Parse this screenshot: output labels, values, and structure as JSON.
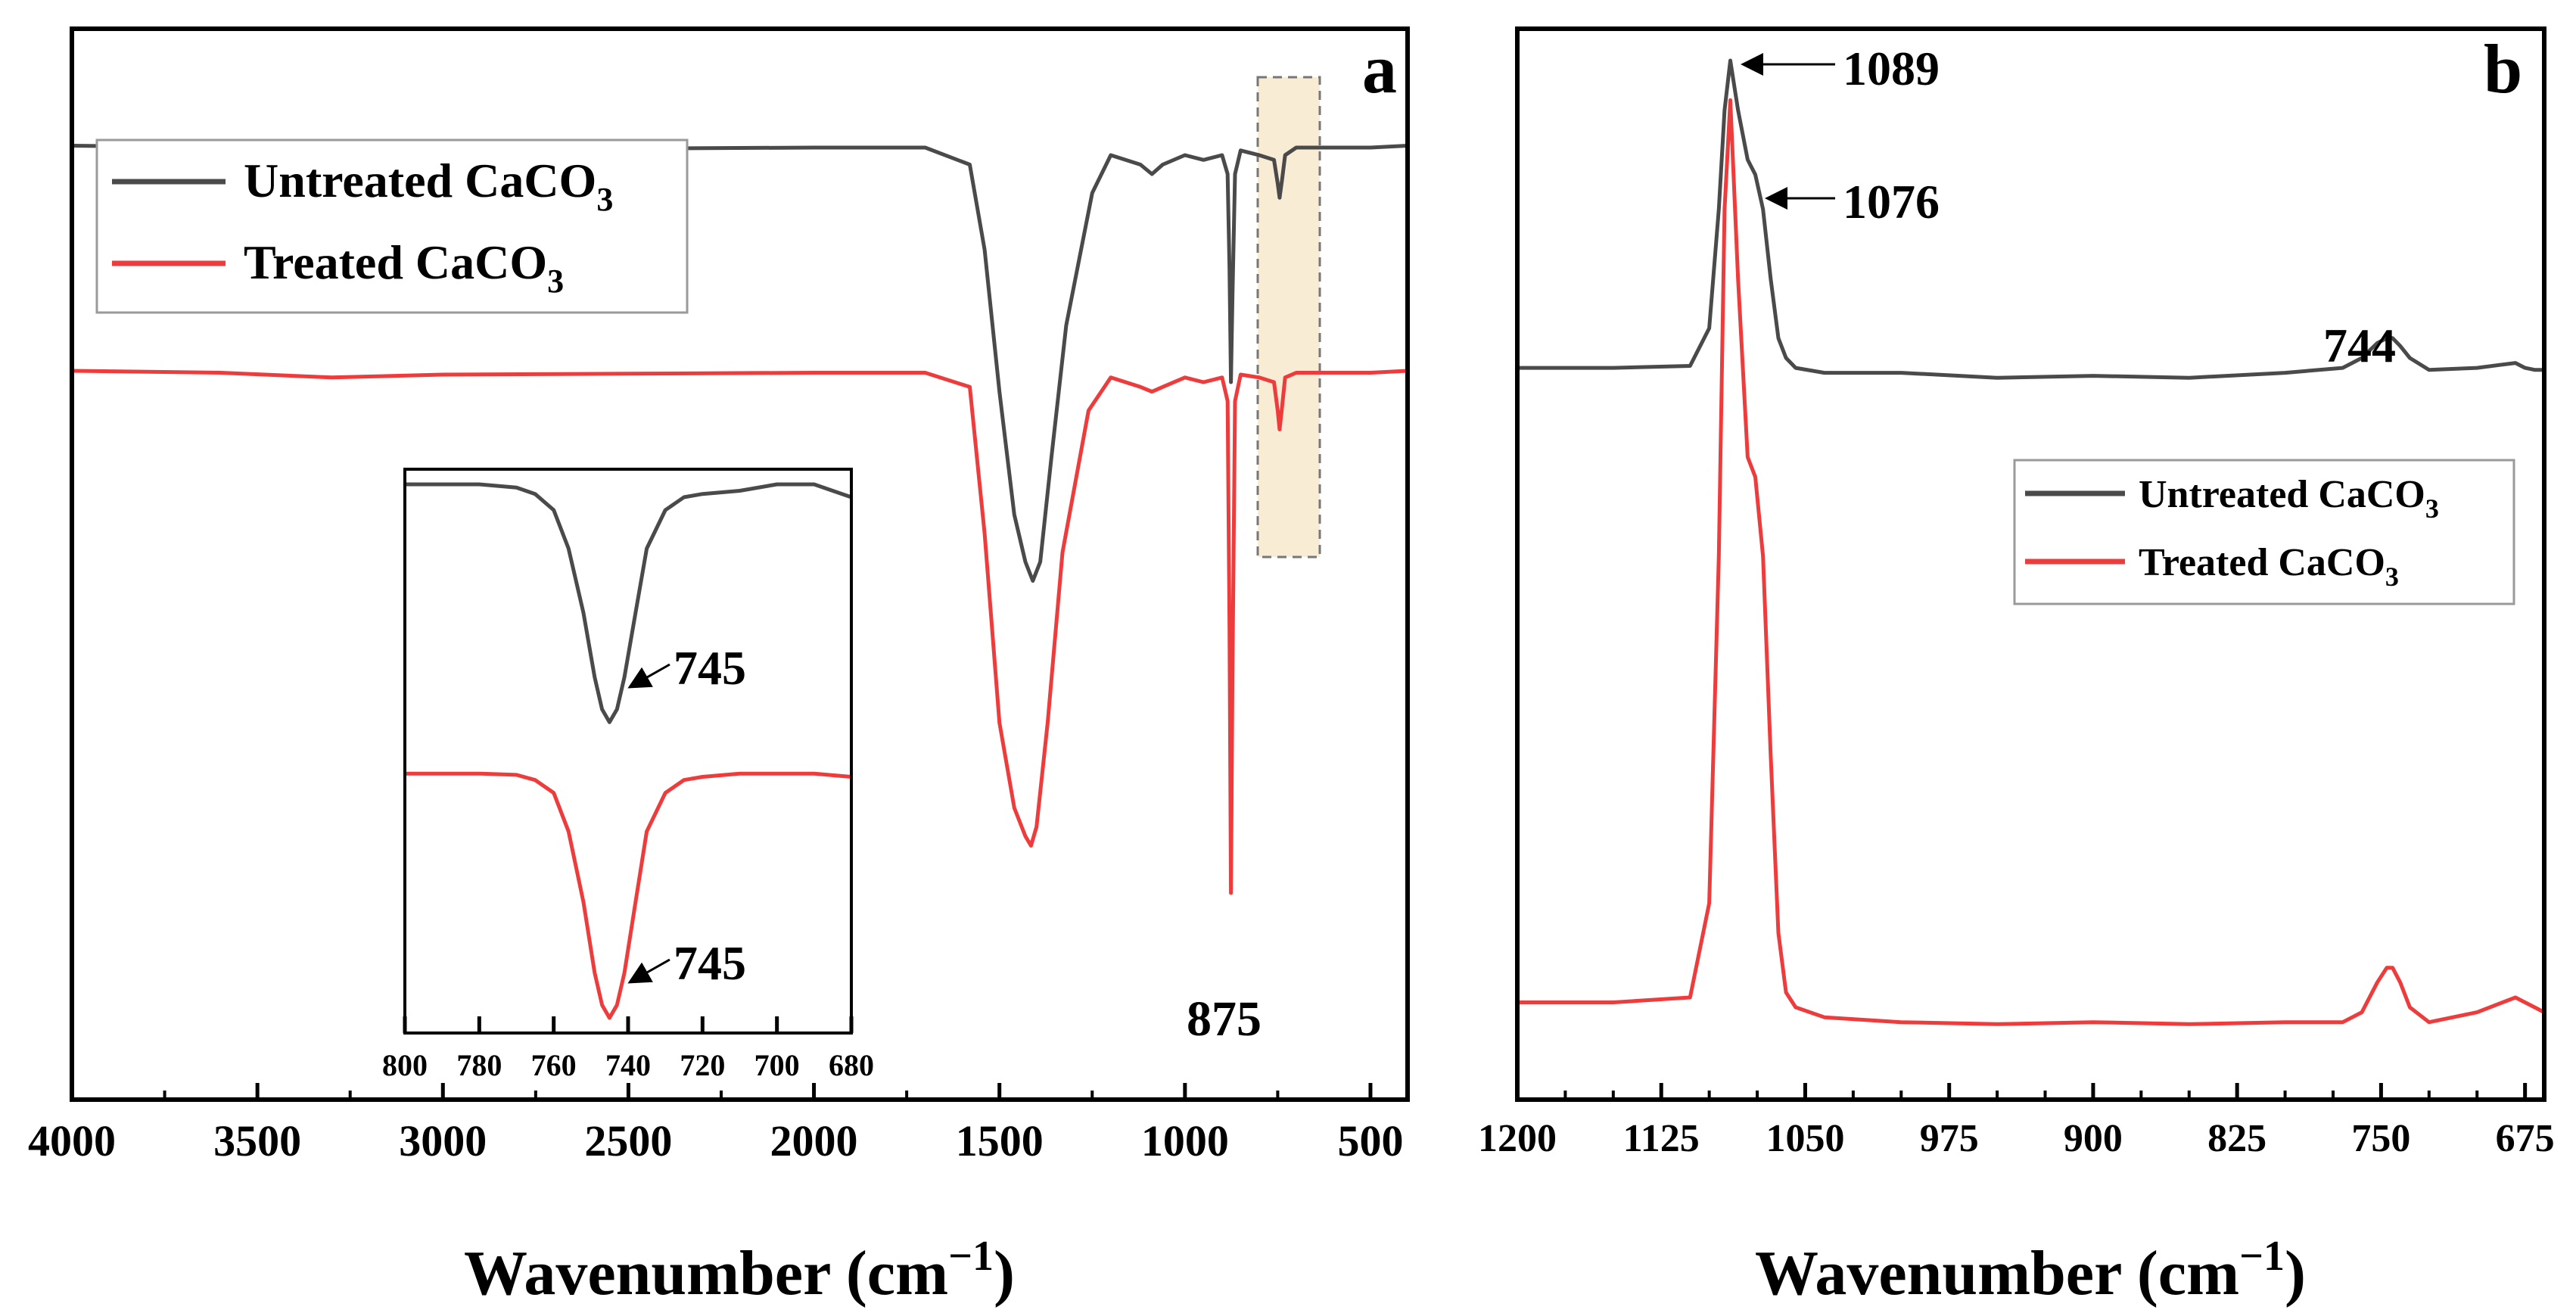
{
  "colors": {
    "untreated": "#4a4a4a",
    "treated": "#ee3b3b",
    "highlight_fill": "#f8ecd4",
    "axis": "#000000"
  },
  "panel_a": {
    "label": "a",
    "xlabel": "Wavenumber (cm",
    "xlabel_sup": "−1",
    "xlabel_close": ")",
    "legend": {
      "untreated": {
        "prefix": "Untreated CaCO",
        "sub": "3"
      },
      "treated": {
        "prefix": "Treated CaCO",
        "sub": "3"
      }
    },
    "peak_label_875": "875",
    "inset": {
      "peak_label_untreated": "745",
      "peak_label_treated": "745"
    }
  },
  "panel_b": {
    "label": "b",
    "xlabel": "Wavenumber (cm",
    "xlabel_sup": "−1",
    "xlabel_close": ")",
    "legend": {
      "untreated": {
        "prefix": "Untreated CaCO",
        "sub": "3"
      },
      "treated": {
        "prefix": "Treated CaCO",
        "sub": "3"
      }
    },
    "peak_1089": "1089",
    "peak_1076": "1076",
    "peak_744": "744"
  },
  "chart_data": [
    {
      "type": "line",
      "title": "a",
      "xlabel": "Wavenumber (cm−1)",
      "ylabel": "",
      "xlim": [
        4000,
        400
      ],
      "ylim": [
        0,
        1
      ],
      "xticks": [
        4000,
        3500,
        3000,
        2500,
        2000,
        1500,
        1000,
        500
      ],
      "legend": "top-left",
      "series": [
        {
          "name": "Untreated CaCO3",
          "color": "#4a4a4a",
          "x": [
            4000,
            3600,
            3300,
            3000,
            2500,
            2000,
            1700,
            1580,
            1540,
            1500,
            1460,
            1430,
            1410,
            1390,
            1360,
            1320,
            1250,
            1200,
            1120,
            1089,
            1060,
            1000,
            950,
            900,
            885,
            880,
            876,
            872,
            865,
            850,
            800,
            760,
            750,
            745,
            738,
            730,
            700,
            600,
            500,
            400
          ],
          "y": [
            0.91,
            0.908,
            0.905,
            0.906,
            0.907,
            0.908,
            0.908,
            0.89,
            0.8,
            0.65,
            0.52,
            0.47,
            0.45,
            0.47,
            0.58,
            0.72,
            0.86,
            0.9,
            0.89,
            0.88,
            0.89,
            0.9,
            0.895,
            0.9,
            0.88,
            0.78,
            0.66,
            0.75,
            0.88,
            0.905,
            0.9,
            0.895,
            0.87,
            0.855,
            0.875,
            0.9,
            0.908,
            0.908,
            0.908,
            0.91
          ]
        },
        {
          "name": "Treated CaCO3",
          "color": "#ee3b3b",
          "x": [
            4000,
            3600,
            3300,
            3000,
            2500,
            2000,
            1700,
            1580,
            1540,
            1500,
            1460,
            1430,
            1415,
            1400,
            1370,
            1330,
            1260,
            1200,
            1120,
            1089,
            1060,
            1000,
            950,
            900,
            885,
            880,
            876,
            872,
            865,
            850,
            800,
            760,
            750,
            745,
            738,
            730,
            700,
            600,
            500,
            400
          ],
          "y": [
            0.672,
            0.67,
            0.665,
            0.668,
            0.669,
            0.67,
            0.67,
            0.655,
            0.5,
            0.3,
            0.21,
            0.18,
            0.17,
            0.19,
            0.3,
            0.48,
            0.63,
            0.665,
            0.655,
            0.65,
            0.655,
            0.665,
            0.66,
            0.665,
            0.64,
            0.4,
            0.12,
            0.35,
            0.64,
            0.668,
            0.665,
            0.66,
            0.63,
            0.61,
            0.635,
            0.665,
            0.67,
            0.67,
            0.67,
            0.672
          ]
        }
      ],
      "annotations": [
        {
          "text": "875",
          "x": 875
        },
        {
          "text": "highlight-box",
          "x_range": [
            800,
            680
          ]
        }
      ]
    },
    {
      "type": "line",
      "title": "inset",
      "xlabel": "",
      "ylabel": "",
      "xlim": [
        800,
        680
      ],
      "xticks": [
        800,
        780,
        760,
        740,
        720,
        700,
        680
      ],
      "series": [
        {
          "name": "Untreated CaCO3",
          "color": "#4a4a4a",
          "x": [
            800,
            790,
            780,
            770,
            765,
            760,
            756,
            752,
            749,
            747,
            745,
            743,
            741,
            738,
            735,
            730,
            725,
            720,
            710,
            700,
            690,
            680
          ],
          "y": [
            0.9,
            0.9,
            0.9,
            0.895,
            0.885,
            0.86,
            0.8,
            0.7,
            0.6,
            0.55,
            0.53,
            0.55,
            0.6,
            0.7,
            0.8,
            0.86,
            0.88,
            0.885,
            0.89,
            0.9,
            0.9,
            0.88
          ]
        },
        {
          "name": "Treated CaCO3",
          "color": "#ee3b3b",
          "x": [
            800,
            790,
            780,
            770,
            765,
            760,
            756,
            752,
            749,
            747,
            745,
            743,
            741,
            738,
            735,
            730,
            725,
            720,
            710,
            700,
            690,
            680
          ],
          "y": [
            0.45,
            0.45,
            0.45,
            0.448,
            0.44,
            0.42,
            0.36,
            0.25,
            0.14,
            0.09,
            0.07,
            0.09,
            0.14,
            0.25,
            0.36,
            0.42,
            0.44,
            0.445,
            0.45,
            0.45,
            0.45,
            0.445
          ]
        }
      ],
      "annotations": [
        {
          "text": "745",
          "x": 745,
          "series": "Untreated CaCO3"
        },
        {
          "text": "745",
          "x": 745,
          "series": "Treated CaCO3"
        }
      ]
    },
    {
      "type": "line",
      "title": "b",
      "xlabel": "Wavenumber (cm−1)",
      "ylabel": "",
      "xlim": [
        1200,
        665
      ],
      "ylim": [
        0,
        1
      ],
      "xticks": [
        1200,
        1125,
        1050,
        975,
        900,
        825,
        750,
        675
      ],
      "legend": "right",
      "series": [
        {
          "name": "Untreated CaCO3",
          "color": "#4a4a4a",
          "x": [
            1200,
            1150,
            1110,
            1100,
            1095,
            1092,
            1089,
            1085,
            1080,
            1076,
            1072,
            1068,
            1064,
            1060,
            1055,
            1040,
            1000,
            950,
            900,
            850,
            800,
            770,
            760,
            752,
            747,
            744,
            740,
            735,
            725,
            700,
            680,
            675,
            670,
            665
          ],
          "y": [
            0.69,
            0.69,
            0.692,
            0.73,
            0.85,
            0.95,
            1.0,
            0.95,
            0.9,
            0.885,
            0.85,
            0.78,
            0.72,
            0.7,
            0.69,
            0.685,
            0.685,
            0.68,
            0.682,
            0.68,
            0.685,
            0.69,
            0.7,
            0.715,
            0.72,
            0.72,
            0.712,
            0.7,
            0.688,
            0.69,
            0.695,
            0.69,
            0.688,
            0.688
          ]
        },
        {
          "name": "Treated CaCO3",
          "color": "#ee3b3b",
          "x": [
            1200,
            1150,
            1110,
            1100,
            1095,
            1092,
            1089,
            1085,
            1080,
            1076,
            1072,
            1068,
            1064,
            1060,
            1055,
            1040,
            1000,
            950,
            900,
            850,
            800,
            770,
            760,
            752,
            747,
            744,
            740,
            735,
            725,
            700,
            680,
            675,
            670,
            665
          ],
          "y": [
            0.05,
            0.05,
            0.055,
            0.15,
            0.5,
            0.85,
            0.96,
            0.78,
            0.6,
            0.58,
            0.5,
            0.3,
            0.12,
            0.06,
            0.045,
            0.035,
            0.03,
            0.028,
            0.03,
            0.028,
            0.03,
            0.03,
            0.04,
            0.07,
            0.085,
            0.085,
            0.07,
            0.045,
            0.03,
            0.04,
            0.055,
            0.05,
            0.045,
            0.04
          ]
        }
      ],
      "annotations": [
        {
          "text": "1089",
          "x": 1089
        },
        {
          "text": "1076",
          "x": 1076
        },
        {
          "text": "744",
          "x": 744
        }
      ]
    }
  ]
}
